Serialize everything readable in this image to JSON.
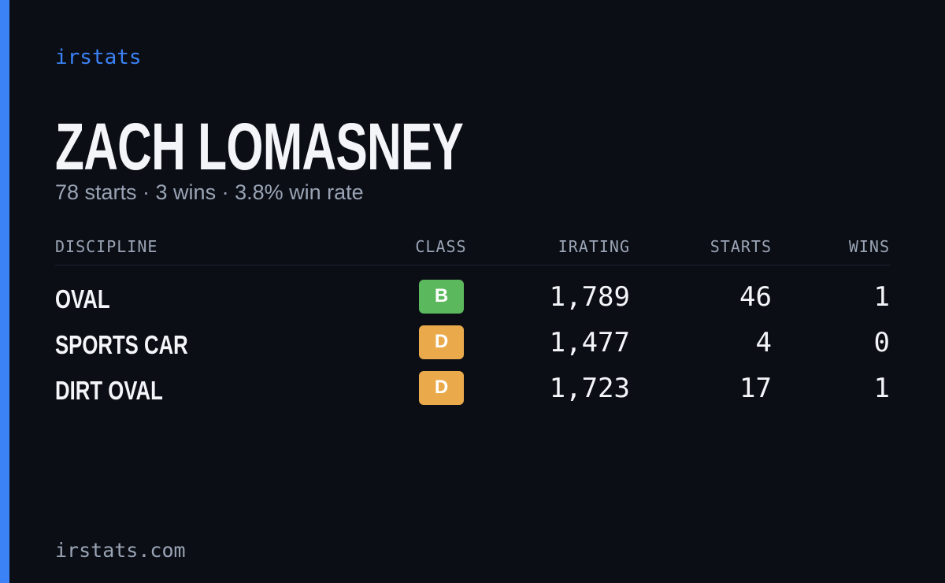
{
  "brand": "irstats",
  "driver": {
    "name": "ZACH LOMASNEY",
    "summary": "78 starts · 3 wins · 3.8% win rate"
  },
  "table": {
    "headers": [
      "DISCIPLINE",
      "CLASS",
      "IRATING",
      "STARTS",
      "WINS"
    ],
    "rows": [
      {
        "discipline": "OVAL",
        "class": "B",
        "class_color": "#5cb85c",
        "irating": "1,789",
        "starts": "46",
        "wins": "1"
      },
      {
        "discipline": "SPORTS CAR",
        "class": "D",
        "class_color": "#eaa94b",
        "irating": "1,477",
        "starts": "4",
        "wins": "0"
      },
      {
        "discipline": "DIRT OVAL",
        "class": "D",
        "class_color": "#eaa94b",
        "irating": "1,723",
        "starts": "17",
        "wins": "1"
      }
    ]
  },
  "footer": "irstats.com"
}
